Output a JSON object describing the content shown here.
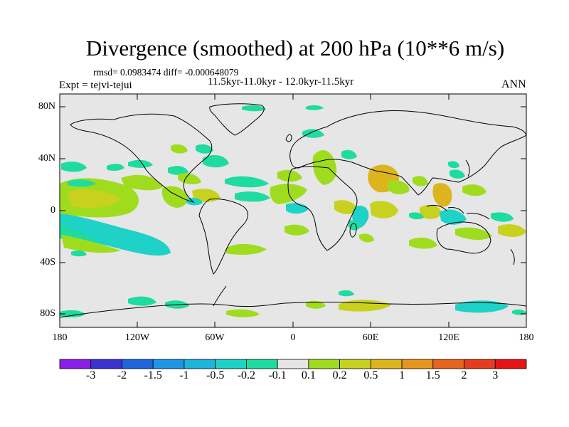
{
  "title": "Divergence (smoothed) at 200 hPa (10**6 m/s)",
  "stats": "rmsd= 0.0983474 diff= -0.000648079",
  "period": "11.5kyr-11.0kyr - 12.0kyr-11.5kyr",
  "experiment": "Expt = tejvi-tejui",
  "season": "ANN",
  "lat_labels": [
    "80N",
    "40N",
    "0",
    "40S",
    "80S"
  ],
  "lon_labels": [
    "180",
    "120W",
    "60W",
    "0",
    "60E",
    "120E",
    "180"
  ],
  "colorbar": {
    "labels": [
      "-3",
      "-2",
      "-1.5",
      "-1",
      "-0.5",
      "-0.2",
      "-0.1",
      "0.1",
      "0.2",
      "0.5",
      "1",
      "1.5",
      "2",
      "3"
    ],
    "colors": [
      "#8a1ee6",
      "#3c32d2",
      "#1e64dc",
      "#1e96e6",
      "#1eb4dc",
      "#1ed2c8",
      "#1edca0",
      "#e6e6e6",
      "#a0dc1e",
      "#c8d21e",
      "#dcb41e",
      "#e6961e",
      "#e6641e",
      "#e63c1e",
      "#e61414"
    ]
  },
  "map_background": "#e6e6e6",
  "field_colors": {
    "pos_weak": "#a0dc1e",
    "pos_mid": "#c8d21e",
    "pos_strong": "#dcb41e",
    "neg_weak": "#1edca0",
    "neg_mid": "#1ed2c8"
  }
}
